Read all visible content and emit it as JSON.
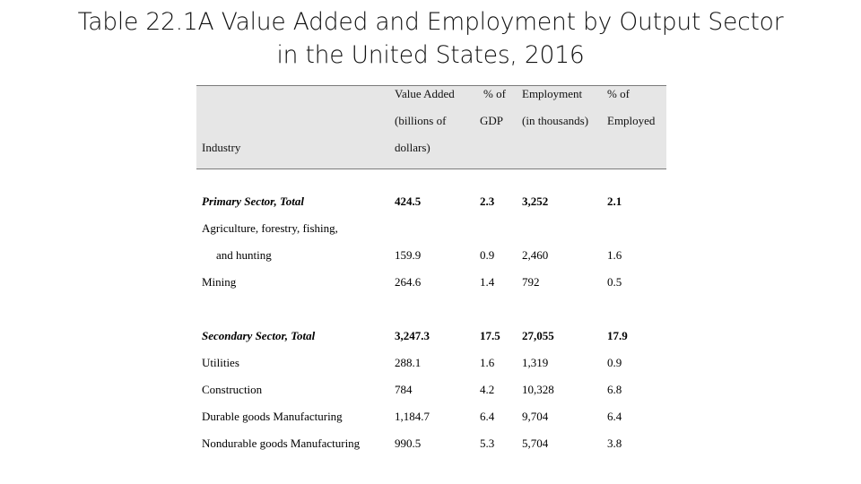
{
  "title": {
    "line1": "Table 22.1A Value Added and Employment by Output Sector",
    "line2": "in the United States, 2016"
  },
  "table": {
    "headers": {
      "industry": "Industry",
      "value_added": [
        "Value Added",
        "(billions of",
        "dollars)"
      ],
      "pct_gdp": [
        "% of",
        "GDP"
      ],
      "employment": [
        "Employment",
        "(in thousands)"
      ],
      "pct_employed": [
        "% of",
        "Employed"
      ]
    },
    "rows": [
      {
        "industry": "Primary Sector, Total",
        "value_added": "424.5",
        "pct_gdp": "2.3",
        "employment": "3,252",
        "pct_employed": "2.1",
        "total": true
      },
      {
        "industry": "Agriculture, forestry, fishing,",
        "value_added": "",
        "pct_gdp": "",
        "employment": "",
        "pct_employed": ""
      },
      {
        "industry": "and hunting",
        "value_added": "159.9",
        "pct_gdp": "0.9",
        "employment": "2,460",
        "pct_employed": "1.6",
        "indent": true
      },
      {
        "industry": "Mining",
        "value_added": "264.6",
        "pct_gdp": "1.4",
        "employment": "792",
        "pct_employed": "0.5"
      },
      {
        "industry": "Secondary Sector, Total",
        "value_added": "3,247.3",
        "pct_gdp": "17.5",
        "employment": "27,055",
        "pct_employed": "17.9",
        "total": true
      },
      {
        "industry": "Utilities",
        "value_added": "288.1",
        "pct_gdp": "1.6",
        "employment": "1,319",
        "pct_employed": "0.9"
      },
      {
        "industry": "Construction",
        "value_added": "784",
        "pct_gdp": "4.2",
        "employment": "10,328",
        "pct_employed": "6.8"
      },
      {
        "industry": "Durable goods Manufacturing",
        "value_added": "1,184.7",
        "pct_gdp": "6.4",
        "employment": "9,704",
        "pct_employed": "6.4"
      },
      {
        "industry": "Nondurable goods Manufacturing",
        "value_added": "990.5",
        "pct_gdp": "5.3",
        "employment": "5,704",
        "pct_employed": "3.8"
      }
    ]
  }
}
